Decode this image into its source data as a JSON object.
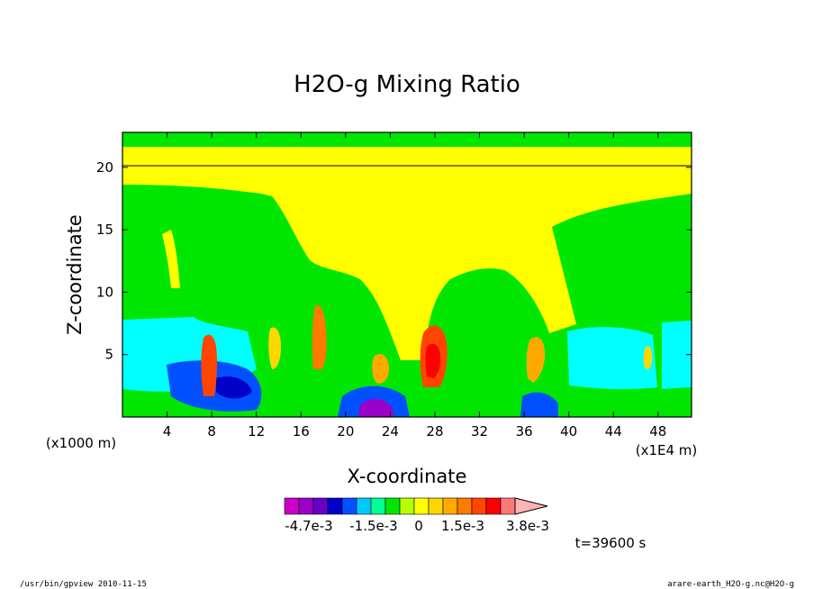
{
  "chart_data": {
    "type": "heatmap",
    "title": "H2O-g Mixing Ratio",
    "xlabel": "X-coordinate",
    "ylabel": "Z-coordinate",
    "x_ticks": [
      4,
      8,
      12,
      16,
      20,
      24,
      28,
      32,
      36,
      40,
      44,
      48
    ],
    "y_ticks": [
      5,
      10,
      15,
      20
    ],
    "x_unit_label": "(x1E4 m)",
    "y_unit_label": "(x1000 m)",
    "xlim": [
      0,
      51
    ],
    "ylim": [
      0,
      22.8
    ],
    "colorbar": {
      "colors": [
        "#c800c8",
        "#9b00c8",
        "#6a00c8",
        "#0000c8",
        "#0050ff",
        "#00c8ff",
        "#00ff96",
        "#00e600",
        "#b4ff00",
        "#ffff00",
        "#ffd700",
        "#ffaa00",
        "#ff7a00",
        "#ff4500",
        "#ff0000",
        "#ff7878",
        "#ffb4b4"
      ],
      "labels": [
        "-4.7e-3",
        "-1.5e-3",
        "0",
        "1.5e-3",
        "3.8e-3"
      ]
    },
    "time_label": "t=39600 s",
    "footer_left": "/usr/bin/gpview   2010-11-15",
    "footer_right": "arare-earth_H2O-g.nc@H2O-g"
  }
}
